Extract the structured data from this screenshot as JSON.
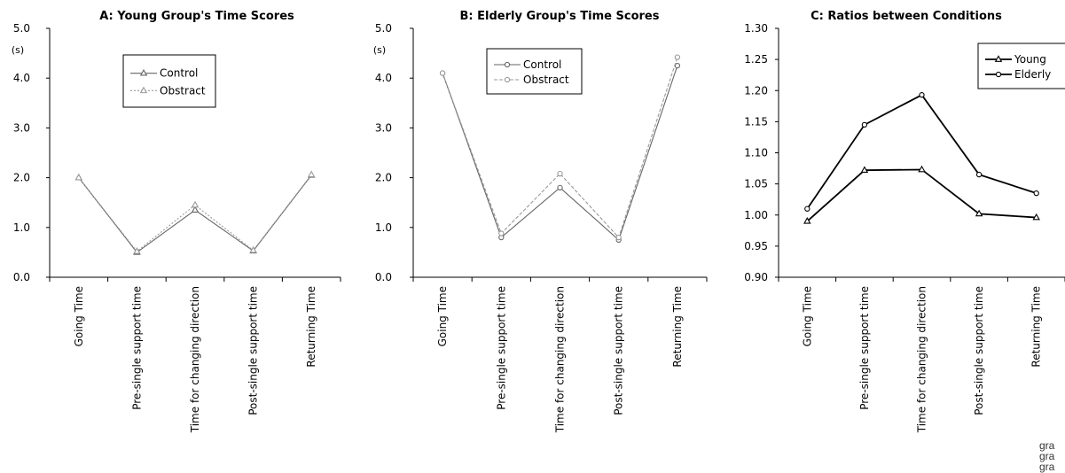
{
  "chart_data": [
    {
      "type": "line",
      "title": "A: Young Group's Time Scores",
      "ylabel": "(s)",
      "ylim": [
        0,
        5.0
      ],
      "yticks": [
        "0.0",
        "1.0",
        "2.0",
        "3.0",
        "4.0",
        "5.0"
      ],
      "categories": [
        "Going Time",
        "Pre-single support time",
        "Time for changing direction",
        "Post-single support time",
        "Returning Time"
      ],
      "legend_position": "top-center",
      "grid": false,
      "series": [
        {
          "name": "Control",
          "values": [
            2.0,
            0.5,
            1.35,
            0.53,
            2.05
          ],
          "color": "#666666",
          "marker": "triangle",
          "dash": "solid"
        },
        {
          "name": "Obstract",
          "values": [
            2.0,
            0.52,
            1.45,
            0.54,
            2.06
          ],
          "color": "#999999",
          "marker": "triangle",
          "dash": "dotted"
        }
      ]
    },
    {
      "type": "line",
      "title": "B: Elderly Group's Time Scores",
      "ylabel": "(s)",
      "ylim": [
        0,
        5.0
      ],
      "yticks": [
        "0.0",
        "1.0",
        "2.0",
        "3.0",
        "4.0",
        "5.0"
      ],
      "categories": [
        "Going Time",
        "Pre-single support time",
        "Time for changing direction",
        "Post-single support time",
        "Returning Time"
      ],
      "legend_position": "top-center",
      "grid": false,
      "series": [
        {
          "name": "Control",
          "values": [
            4.1,
            0.8,
            1.8,
            0.75,
            4.25
          ],
          "color": "#666666",
          "marker": "circle",
          "dash": "solid"
        },
        {
          "name": "Obstract",
          "values": [
            4.1,
            0.88,
            2.08,
            0.8,
            4.42
          ],
          "color": "#999999",
          "marker": "circle",
          "dash": "dashed"
        }
      ]
    },
    {
      "type": "line",
      "title": "C: Ratios between Conditions",
      "ylabel": "",
      "ylim": [
        0.9,
        1.3
      ],
      "yticks": [
        "0.90",
        "0.95",
        "1.00",
        "1.05",
        "1.10",
        "1.15",
        "1.20",
        "1.25",
        "1.30"
      ],
      "categories": [
        "Going Time",
        "Pre-single support time",
        "Time for changing direction",
        "Post-single support time",
        "Returning Time"
      ],
      "legend_position": "top-right",
      "grid": false,
      "series": [
        {
          "name": "Young",
          "values": [
            0.99,
            1.072,
            1.073,
            1.002,
            0.996
          ],
          "color": "#000000",
          "marker": "triangle",
          "dash": "solid"
        },
        {
          "name": "Elderly",
          "values": [
            1.01,
            1.145,
            1.193,
            1.065,
            1.035
          ],
          "color": "#000000",
          "marker": "circle",
          "dash": "solid"
        }
      ]
    }
  ],
  "fragment": [
    "gra",
    "gra",
    "gra"
  ]
}
